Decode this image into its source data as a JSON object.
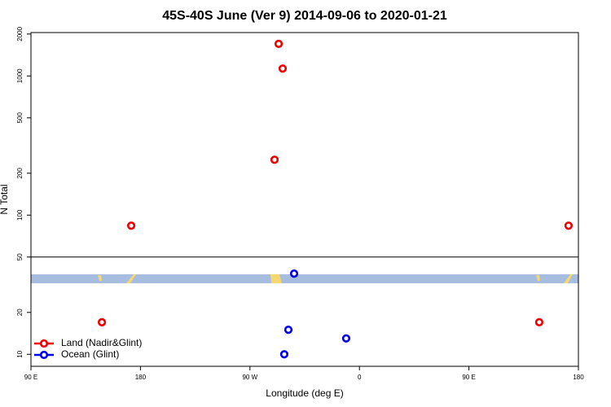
{
  "chart_data": {
    "type": "scatter",
    "title": "45S-40S June (Ver 9)   2014-09-06 to 2020-01-21",
    "xlabel": "Longitude (deg E)",
    "ylabel": "N Total",
    "xlim": [
      90,
      540
    ],
    "xticks": [
      {
        "value": 90,
        "label": "90 E"
      },
      180,
      {
        "value": 270,
        "label": "90 W"
      },
      {
        "value": 360,
        "label": "0"
      },
      {
        "value": 450,
        "label": "90 E"
      },
      {
        "value": 540,
        "label": "180"
      }
    ],
    "ylim": [
      8.2,
      2050
    ],
    "yticks": [
      10,
      20,
      50,
      100,
      200,
      500,
      1000,
      2000
    ],
    "log_y": true,
    "hline": 50,
    "legend": "bottom-left",
    "series": [
      {
        "name": "Land (Nadir&Glint)",
        "color": "#ee0000",
        "x": [
          172.4,
          148.3,
          293.6,
          296.9,
          290.2,
          507.8,
          531.9
        ],
        "values": [
          84,
          17,
          1700,
          1130,
          250,
          17,
          84
        ]
      },
      {
        "name": "Ocean (Glint)",
        "color": "#0000ee",
        "x": [
          306.3,
          301.6,
          298.2,
          349.1
        ],
        "values": [
          38,
          15,
          10,
          13
        ]
      }
    ]
  }
}
